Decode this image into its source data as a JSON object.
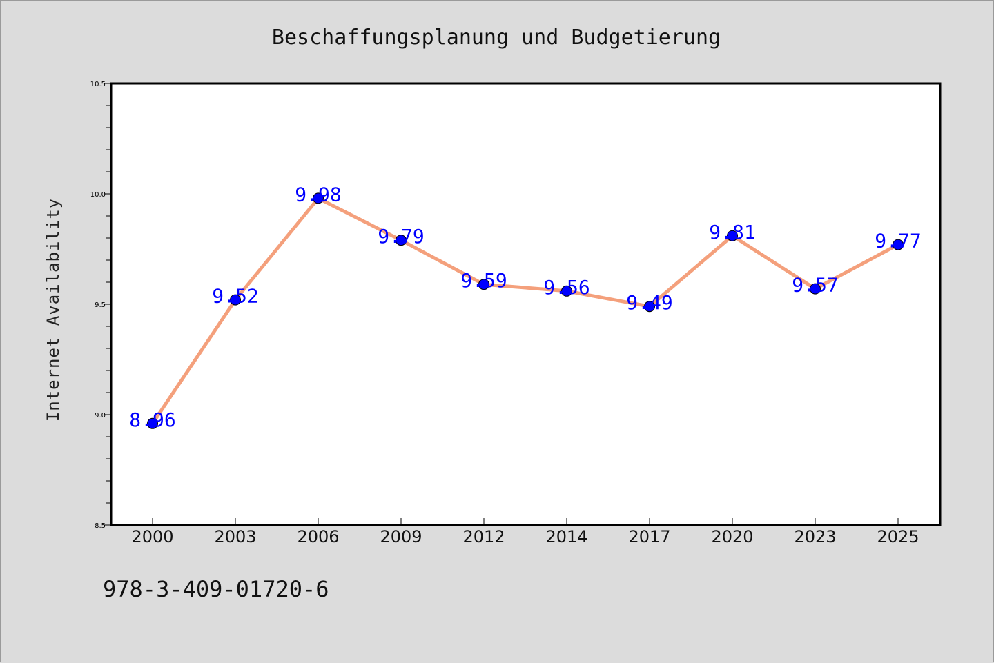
{
  "chart_data": {
    "type": "line",
    "title": "Beschaffungsplanung und Budgetierung",
    "xlabel": "",
    "ylabel": "Internet Availability",
    "categories": [
      "2000",
      "2003",
      "2006",
      "2009",
      "2012",
      "2014",
      "2017",
      "2020",
      "2023",
      "2025"
    ],
    "series": [
      {
        "values": [
          8.96,
          9.52,
          9.98,
          9.79,
          9.59,
          9.56,
          9.49,
          9.81,
          9.57,
          9.77
        ],
        "line_color": "#f4a07c",
        "marker_color": "#0000ff"
      }
    ],
    "data_labels": [
      "8.96",
      "9.52",
      "9.98",
      "9.79",
      "9.59",
      "9.56",
      "9.49",
      "9.81",
      "9.57",
      "9.77"
    ],
    "ylim": [
      8.5,
      10.5
    ],
    "yticks": [
      8.5,
      9.0,
      9.5,
      10.0,
      10.5
    ],
    "ytick_labels": [
      "8.5",
      "9.0",
      "9.5",
      "10.0",
      "10.5"
    ],
    "grid": false,
    "legend": "none"
  },
  "footer": {
    "isbn": "978-3-409-01720-6"
  }
}
